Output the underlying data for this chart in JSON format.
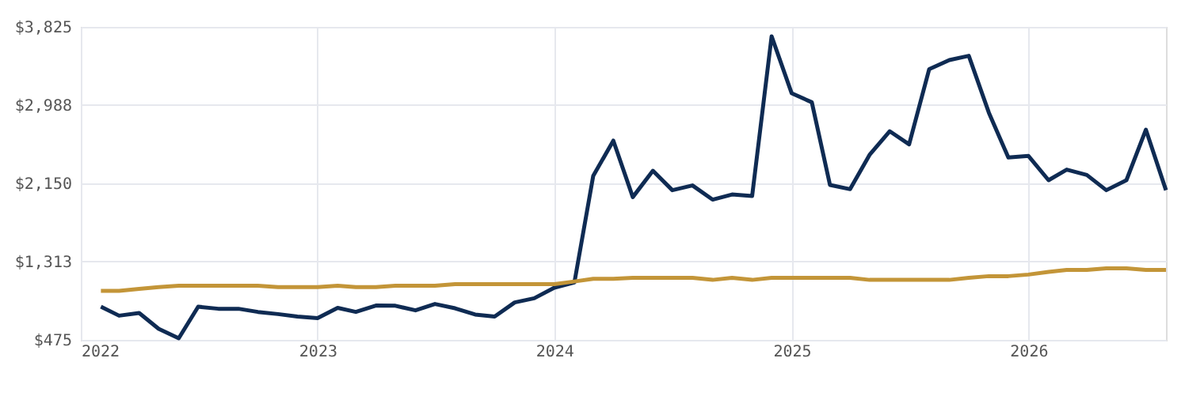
{
  "chart_data": {
    "type": "line",
    "x": [
      "2022-02",
      "2022-03",
      "2022-04",
      "2022-05",
      "2022-06",
      "2022-07",
      "2022-08",
      "2022-09",
      "2022-10",
      "2022-11",
      "2022-12",
      "2023-01",
      "2023-02",
      "2023-03",
      "2023-04",
      "2023-05",
      "2023-06",
      "2023-07",
      "2023-08",
      "2023-09",
      "2023-10",
      "2023-11",
      "2023-12",
      "2024-01",
      "2024-02",
      "2024-03",
      "2024-04",
      "2024-05",
      "2024-06",
      "2024-07",
      "2024-08",
      "2024-09",
      "2024-10",
      "2024-11",
      "2024-12",
      "2025-01",
      "2025-02",
      "2025-03",
      "2025-04",
      "2025-05",
      "2025-06",
      "2025-07",
      "2025-08",
      "2025-09",
      "2025-10",
      "2025-11",
      "2025-12",
      "2026-01",
      "2026-02",
      "2026-03",
      "2026-04",
      "2026-05",
      "2026-06",
      "2026-07",
      "2026-08"
    ],
    "series": [
      {
        "color": "#0f2b53",
        "values": [
          830,
          734,
          763,
          593,
          492,
          830,
          808,
          808,
          774,
          751,
          724,
          707,
          818,
          774,
          842,
          840,
          791,
          859,
          813,
          746,
          724,
          876,
          920,
          1033,
          1089,
          2230,
          2607,
          2003,
          2285,
          2077,
          2128,
          1976,
          2031,
          2015,
          3724,
          3114,
          3018,
          2133,
          2088,
          2455,
          2708,
          2568,
          3373,
          3470,
          3515,
          2906,
          2427,
          2443,
          2184,
          2297,
          2240,
          2077,
          2184,
          2725,
          2077
        ]
      },
      {
        "color": "#c39538",
        "values": [
          1000,
          1000,
          1020,
          1040,
          1055,
          1055,
          1055,
          1055,
          1055,
          1040,
          1040,
          1040,
          1055,
          1040,
          1040,
          1055,
          1055,
          1055,
          1072,
          1072,
          1072,
          1072,
          1072,
          1072,
          1100,
          1129,
          1129,
          1140,
          1140,
          1140,
          1140,
          1117,
          1140,
          1117,
          1140,
          1140,
          1140,
          1140,
          1140,
          1117,
          1117,
          1117,
          1117,
          1117,
          1140,
          1157,
          1157,
          1174,
          1202,
          1224,
          1224,
          1241,
          1241,
          1224,
          1224
        ]
      }
    ],
    "xlim": [
      "2022-01",
      "2026-08"
    ],
    "xticks": [
      "2022",
      "2023",
      "2024",
      "2025",
      "2026"
    ],
    "ylim": [
      475,
      3825
    ],
    "yticks": [
      {
        "value": 475,
        "label": "$475"
      },
      {
        "value": 1313,
        "label": "$1,313"
      },
      {
        "value": 2150,
        "label": "$2,150"
      },
      {
        "value": 2988,
        "label": "$2,988"
      },
      {
        "value": 3825,
        "label": "$3,825"
      }
    ],
    "grid": true,
    "line_style": "solid",
    "marker": "none"
  }
}
